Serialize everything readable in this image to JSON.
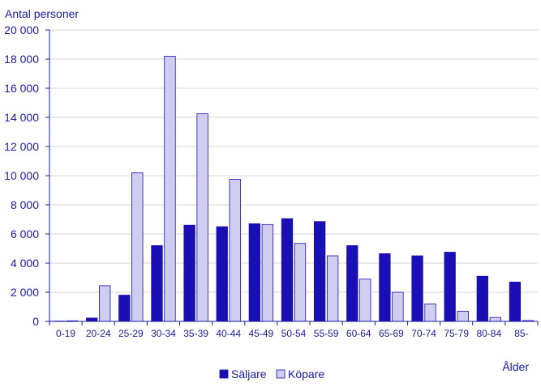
{
  "chart_data": {
    "type": "bar",
    "ylabel": "Antal personer",
    "xlabel": "Ålder",
    "ylim": [
      0,
      20000
    ],
    "ytick_step": 2000,
    "yticks": [
      "0",
      "2 000",
      "4 000",
      "6 000",
      "8 000",
      "10 000",
      "12 000",
      "14 000",
      "16 000",
      "18 000",
      "20 000"
    ],
    "grid": true,
    "legend_position": "bottom-center",
    "categories": [
      "0-19",
      "20-24",
      "25-29",
      "30-34",
      "35-39",
      "40-44",
      "45-49",
      "50-54",
      "55-59",
      "60-64",
      "65-69",
      "70-74",
      "75-79",
      "80-84",
      "85-"
    ],
    "series": [
      {
        "name": "Säljare",
        "color": "#1a0fb4",
        "values": [
          20,
          230,
          1800,
          5200,
          6600,
          6500,
          6700,
          7050,
          6850,
          5200,
          4650,
          4500,
          4750,
          3100,
          2700
        ]
      },
      {
        "name": "Köpare",
        "color": "#cfcdf0",
        "values": [
          40,
          2450,
          10200,
          18200,
          14250,
          9750,
          6650,
          5350,
          4500,
          2900,
          2000,
          1200,
          700,
          270,
          60
        ]
      }
    ]
  }
}
